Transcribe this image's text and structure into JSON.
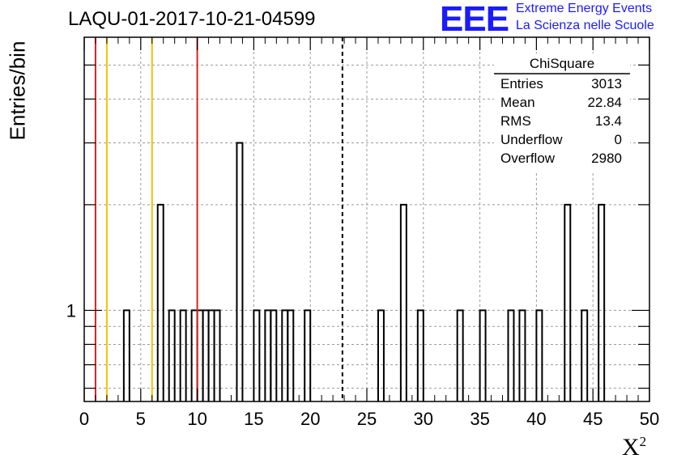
{
  "chart_data": {
    "type": "bar",
    "title": "LAQU-01-2017-10-21-04599",
    "xlabel": "X",
    "xlabel_sup": "2",
    "ylabel": "Entries/bin",
    "xlim": [
      0,
      50
    ],
    "xticks": [
      "0",
      "5",
      "10",
      "15",
      "20",
      "25",
      "30",
      "35",
      "40",
      "45",
      "50"
    ],
    "ylim": [
      0.55,
      6.0
    ],
    "y_scale": "log",
    "yticks": [
      {
        "value": 1,
        "label": "1"
      }
    ],
    "grid": true,
    "bin_width": 0.5,
    "bins": [
      {
        "x": 3.5,
        "y": 1
      },
      {
        "x": 6.5,
        "y": 2
      },
      {
        "x": 7.5,
        "y": 1
      },
      {
        "x": 8.5,
        "y": 1
      },
      {
        "x": 9.5,
        "y": 1
      },
      {
        "x": 10.0,
        "y": 1
      },
      {
        "x": 10.5,
        "y": 1
      },
      {
        "x": 11.0,
        "y": 1
      },
      {
        "x": 11.5,
        "y": 1
      },
      {
        "x": 13.5,
        "y": 3
      },
      {
        "x": 15.0,
        "y": 1
      },
      {
        "x": 16.0,
        "y": 1
      },
      {
        "x": 16.5,
        "y": 1
      },
      {
        "x": 17.5,
        "y": 1
      },
      {
        "x": 18.0,
        "y": 1
      },
      {
        "x": 19.5,
        "y": 1
      },
      {
        "x": 26.0,
        "y": 1
      },
      {
        "x": 28.0,
        "y": 2
      },
      {
        "x": 29.5,
        "y": 1
      },
      {
        "x": 33.0,
        "y": 1
      },
      {
        "x": 35.0,
        "y": 1
      },
      {
        "x": 37.5,
        "y": 1
      },
      {
        "x": 38.5,
        "y": 1
      },
      {
        "x": 40.0,
        "y": 1
      },
      {
        "x": 42.5,
        "y": 2
      },
      {
        "x": 44.0,
        "y": 1
      },
      {
        "x": 45.5,
        "y": 2
      }
    ],
    "vertical_lines": [
      {
        "x": 1,
        "color": "#dd2222",
        "style": "solid"
      },
      {
        "x": 2,
        "color": "#f2c200",
        "style": "solid"
      },
      {
        "x": 6,
        "color": "#f2c200",
        "style": "solid"
      },
      {
        "x": 10,
        "color": "#dd2222",
        "style": "solid"
      },
      {
        "x": 22.84,
        "color": "#000000",
        "style": "dashed"
      }
    ],
    "stats": {
      "name": "ChiSquare",
      "rows": [
        {
          "label": "Entries",
          "value": "3013"
        },
        {
          "label": "Mean",
          "value": "22.84"
        },
        {
          "label": "RMS",
          "value": "13.4"
        },
        {
          "label": "Underflow",
          "value": "0"
        },
        {
          "label": "Overflow",
          "value": "2980"
        }
      ]
    }
  },
  "logo": {
    "mark": "EEE",
    "line1": "Extreme Energy Events",
    "line2": "La Scienza nelle Scuole",
    "color": "#1a1aff"
  }
}
